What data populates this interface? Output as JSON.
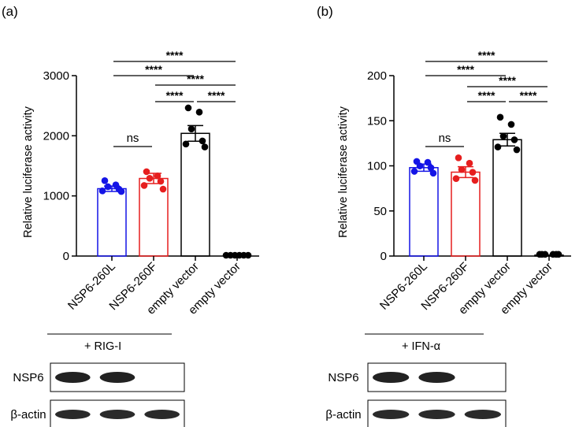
{
  "chart_data": [
    {
      "panel_label": "(a)",
      "type": "bar",
      "ylabel": "Relative luciferase activity",
      "ylim": [
        0,
        3000
      ],
      "yticks": [
        0,
        1000,
        2000,
        3000
      ],
      "categories": [
        "NSP6-260L",
        "NSP6-260F",
        "empty vector",
        "empty vector"
      ],
      "colors": [
        "#1414e6",
        "#e61e1e",
        "#000000",
        "#000000"
      ],
      "values": [
        1120,
        1290,
        2040,
        0
      ],
      "sem": [
        45,
        85,
        130,
        0
      ],
      "points": [
        [
          1240,
          1170,
          1140,
          1100,
          1070,
          1060
        ],
        [
          1390,
          1320,
          1280,
          1230,
          1160,
          1100
        ],
        [
          2450,
          2380,
          2100,
          1900,
          1850,
          1800
        ],
        [
          0,
          0,
          0,
          0,
          0,
          0
        ]
      ],
      "comparisons": [
        {
          "from": 0,
          "to": 1,
          "label": "ns"
        },
        {
          "from": 1,
          "to": 2,
          "label": "****"
        },
        {
          "from": 2,
          "to": 3,
          "label": "****"
        },
        {
          "from": 1,
          "to": 3,
          "label": "****"
        },
        {
          "from": 0,
          "to": 2,
          "label": "****"
        },
        {
          "from": 0,
          "to": 3,
          "label": "****"
        }
      ],
      "treatment": "+ RIG-I",
      "blot_rows": [
        "NSP6",
        "β-actin"
      ]
    },
    {
      "panel_label": "(b)",
      "type": "bar",
      "ylabel": "Relative luciferase activity",
      "ylim": [
        0,
        200
      ],
      "yticks": [
        0,
        50,
        100,
        150,
        200
      ],
      "categories": [
        "NSP6-260L",
        "NSP6-260F",
        "empty vector",
        "empty vector"
      ],
      "colors": [
        "#1414e6",
        "#e61e1e",
        "#000000",
        "#000000"
      ],
      "values": [
        98,
        93,
        129,
        1
      ],
      "sem": [
        4,
        6,
        7,
        0
      ],
      "points": [
        [
          104,
          103,
          99,
          97,
          93,
          91
        ],
        [
          108,
          102,
          95,
          92,
          85,
          83
        ],
        [
          153,
          145,
          132,
          128,
          120,
          117
        ],
        [
          1,
          1,
          1,
          1,
          1,
          1
        ]
      ],
      "comparisons": [
        {
          "from": 0,
          "to": 1,
          "label": "ns"
        },
        {
          "from": 1,
          "to": 2,
          "label": "****"
        },
        {
          "from": 2,
          "to": 3,
          "label": "****"
        },
        {
          "from": 1,
          "to": 3,
          "label": "****"
        },
        {
          "from": 0,
          "to": 2,
          "label": "****"
        },
        {
          "from": 0,
          "to": 3,
          "label": "****"
        }
      ],
      "treatment": "+ IFN-α",
      "blot_rows": [
        "NSP6",
        "β-actin"
      ]
    }
  ]
}
